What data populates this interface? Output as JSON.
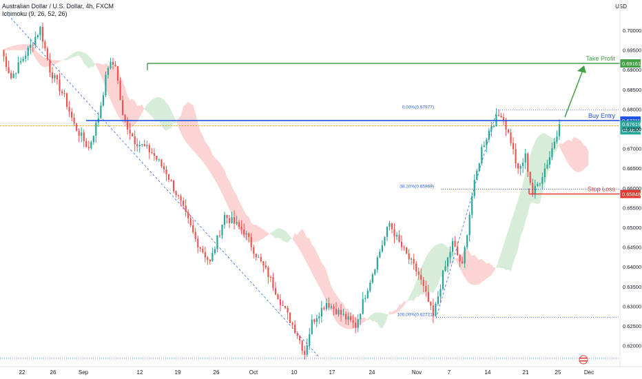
{
  "header": {
    "title": "Australian Dollar / U.S. Dollar, 4h, FXCM",
    "indicator": "Ichimoku (9, 26, 52, 26)",
    "currency": "USD"
  },
  "colors": {
    "up": "#26a69a",
    "down": "#ef5350",
    "cloud_bull": "rgba(76,175,80,0.22)",
    "cloud_bear": "rgba(239,83,80,0.25)",
    "take_profit": "#43a047",
    "entry": "#1e53e5",
    "stop": "#e53935",
    "fib": "#2962ff"
  },
  "chart_data": {
    "type": "candlestick",
    "symbol": "AUDUSD",
    "timeframe": "4h",
    "ylim": [
      0.6168,
      0.7072
    ],
    "y_ticks": [
      "0.70000",
      "0.69500",
      "0.69000",
      "0.68500",
      "0.68000",
      "0.67500",
      "0.67000",
      "0.66500",
      "0.66000",
      "0.65500",
      "0.65000",
      "0.64500",
      "0.64000",
      "0.63500",
      "0.63000",
      "0.62500",
      "0.62000"
    ],
    "x_ticks": [
      "22",
      "26",
      "Sep",
      "12",
      "19",
      "26",
      "Oct",
      "10",
      "17",
      "24",
      "Nov",
      "7",
      "14",
      "21",
      "25",
      "Dec"
    ],
    "price_path": [
      [
        0,
        0.695
      ],
      [
        4,
        0.688
      ],
      [
        8,
        0.692
      ],
      [
        12,
        0.696
      ],
      [
        16,
        0.7005
      ],
      [
        20,
        0.69
      ],
      [
        26,
        0.683
      ],
      [
        30,
        0.676
      ],
      [
        36,
        0.67
      ],
      [
        40,
        0.678
      ],
      [
        44,
        0.691
      ],
      [
        47,
        0.6915
      ],
      [
        50,
        0.678
      ],
      [
        55,
        0.672
      ],
      [
        62,
        0.669
      ],
      [
        68,
        0.664
      ],
      [
        74,
        0.656
      ],
      [
        80,
        0.647
      ],
      [
        86,
        0.641
      ],
      [
        92,
        0.653
      ],
      [
        100,
        0.649
      ],
      [
        106,
        0.642
      ],
      [
        110,
        0.638
      ],
      [
        116,
        0.63
      ],
      [
        122,
        0.623
      ],
      [
        125,
        0.618
      ],
      [
        128,
        0.626
      ],
      [
        134,
        0.631
      ],
      [
        140,
        0.628
      ],
      [
        146,
        0.625
      ],
      [
        150,
        0.633
      ],
      [
        156,
        0.644
      ],
      [
        160,
        0.651
      ],
      [
        164,
        0.646
      ],
      [
        168,
        0.642
      ],
      [
        172,
        0.638
      ],
      [
        176,
        0.631
      ],
      [
        178,
        0.6272
      ],
      [
        182,
        0.638
      ],
      [
        186,
        0.646
      ],
      [
        190,
        0.64
      ],
      [
        194,
        0.658
      ],
      [
        198,
        0.67
      ],
      [
        202,
        0.676
      ],
      [
        206,
        0.679
      ],
      [
        210,
        0.672
      ],
      [
        213,
        0.664
      ],
      [
        216,
        0.668
      ],
      [
        219,
        0.6585
      ],
      [
        222,
        0.662
      ],
      [
        226,
        0.668
      ],
      [
        230,
        0.6762
      ]
    ],
    "levels": {
      "take_profit": {
        "label": "Take Profit",
        "value": 0.69161,
        "value_text": "0.69161"
      },
      "buy_entry": {
        "label": "Buy Entry",
        "value": 0.67711,
        "value_text": "0.67711"
      },
      "stop_loss": {
        "label": "Stop Loss",
        "value": 0.65848,
        "value_text": "0.65848"
      },
      "last_price": {
        "value": 0.67619,
        "value_text": "0.67619",
        "countdown": "02:46:50"
      }
    },
    "fibonacci": [
      {
        "label": "0.00%(0.67977)",
        "value": 0.67977
      },
      {
        "label": "38.20%(0.65969)",
        "value": 0.65969
      },
      {
        "label": "100.00%(0.62721)",
        "value": 0.62721
      }
    ]
  }
}
